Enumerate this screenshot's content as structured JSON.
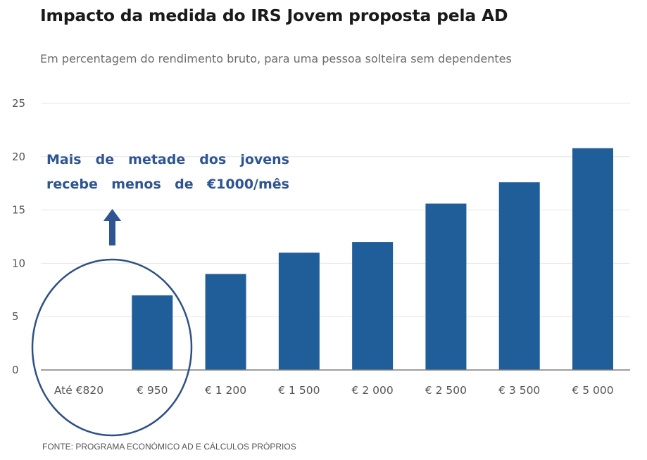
{
  "header": {
    "title": "Impacto da medida do IRS Jovem proposta pela AD",
    "subtitle": "Em percentagem do rendimento bruto, para uma pessoa solteira sem dependentes"
  },
  "annotation": {
    "text": "Mais de metade dos jovens recebe menos de €1000/mês"
  },
  "footer": {
    "source": "FONTE: PROGRAMA ECONÓMICO AD E CÁLCULOS PRÓPRIOS"
  },
  "colors": {
    "bar": "#205e99",
    "annotation": "#2e5592",
    "circle": "#2e4f86",
    "grid": "#e6e6e6",
    "axis": "#7f7f7f"
  },
  "chart_data": {
    "type": "bar",
    "title": "Impacto da medida do IRS Jovem proposta pela AD",
    "subtitle": "Em percentagem do rendimento bruto, para uma pessoa solteira sem dependentes",
    "categories": [
      "Até €820",
      "€ 950",
      "€ 1 200",
      "€ 1 500",
      "€ 2 000",
      "€ 2 500",
      "€ 3 500",
      "€ 5 000"
    ],
    "values": [
      0,
      7,
      9,
      11,
      12,
      15.6,
      17.6,
      20.8
    ],
    "ylim": [
      0,
      25
    ],
    "yticks": [
      0,
      5,
      10,
      15,
      20,
      25
    ],
    "xlabel": "",
    "ylabel": "",
    "grid": true,
    "annotation": "Mais de metade dos jovens recebe menos de €1000/mês"
  }
}
